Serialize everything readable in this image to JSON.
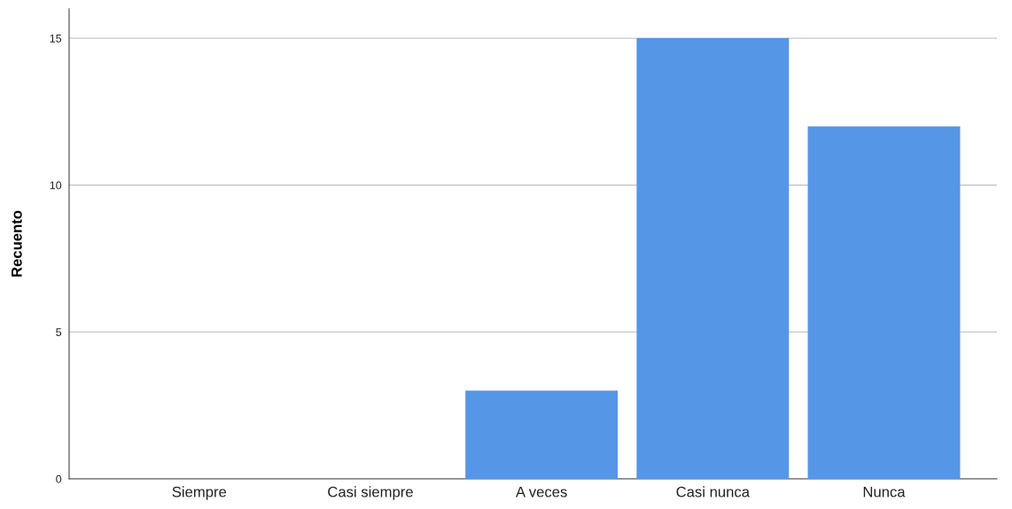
{
  "chart_data": {
    "type": "bar",
    "ylabel": "Recuento",
    "categories": [
      "Siempre",
      "Casi siempre",
      "A veces",
      "Casi nunca",
      "Nunca"
    ],
    "values": [
      0,
      0,
      3,
      15,
      12
    ],
    "color": "#5596e6",
    "ylim": [
      0,
      16
    ],
    "yticks": [
      0,
      5,
      10,
      15
    ],
    "grid": "y",
    "legend": false
  }
}
